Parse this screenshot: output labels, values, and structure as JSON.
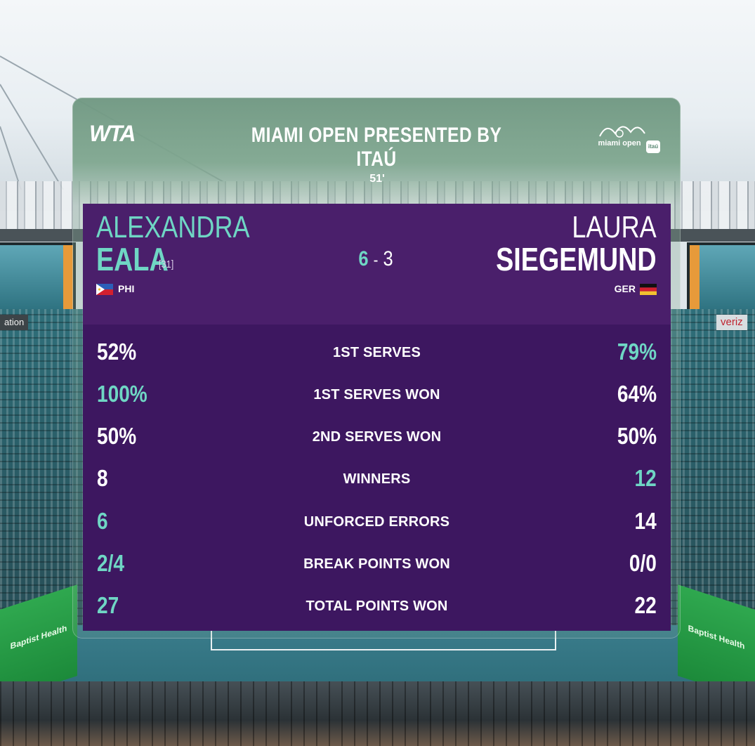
{
  "header": {
    "logo_text": "WTA",
    "title": "MIAMI OPEN PRESENTED BY ITAÚ",
    "tournament_logo_text": "miami open",
    "sponsor_logo_text": "itaú",
    "duration": "51'"
  },
  "score": {
    "player1_games": "6",
    "separator": "-",
    "player2_games": "3"
  },
  "players": [
    {
      "first_name": "ALEXANDRA",
      "last_name": "EALA",
      "seed": "[31]",
      "country": "PHI"
    },
    {
      "first_name": "LAURA",
      "last_name": "SIEGEMUND",
      "seed": "",
      "country": "GER"
    }
  ],
  "stats": [
    {
      "label": "1ST SERVES",
      "p1": "52%",
      "p2": "79%",
      "leader": "p2"
    },
    {
      "label": "1ST SERVES WON",
      "p1": "100%",
      "p2": "64%",
      "leader": "p1"
    },
    {
      "label": "2ND SERVES WON",
      "p1": "50%",
      "p2": "50%",
      "leader": "none"
    },
    {
      "label": "WINNERS",
      "p1": "8",
      "p2": "12",
      "leader": "p2"
    },
    {
      "label": "UNFORCED ERRORS",
      "p1": "6",
      "p2": "14",
      "leader": "p1"
    },
    {
      "label": "BREAK POINTS WON",
      "p1": "2/4",
      "p2": "0/0",
      "leader": "p1"
    },
    {
      "label": "TOTAL POINTS WON",
      "p1": "27",
      "p2": "22",
      "leader": "p1"
    }
  ],
  "background": {
    "left_banner_text": "ation",
    "right_banner_text": "veriz",
    "sponsor_board_text": "Baptist Health"
  },
  "colors": {
    "accent_teal": "#6fd6c4",
    "panel_purple": "#3d1760",
    "header_purple": "#4a1f6b",
    "header_green": "#7aa88c"
  }
}
